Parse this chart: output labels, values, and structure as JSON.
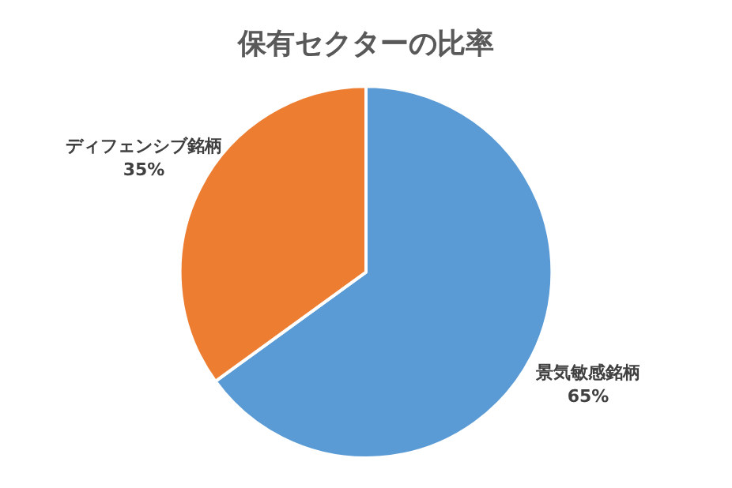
{
  "chart_data": {
    "type": "pie",
    "title": "保有セクターの比率",
    "categories": [
      "景気敏感銘柄",
      "ディフェンシブ銘柄"
    ],
    "values": [
      65,
      35
    ],
    "colors": [
      "#5b9bd5",
      "#ed7d31"
    ],
    "value_labels": [
      "65%",
      "35%"
    ],
    "legend": false
  }
}
